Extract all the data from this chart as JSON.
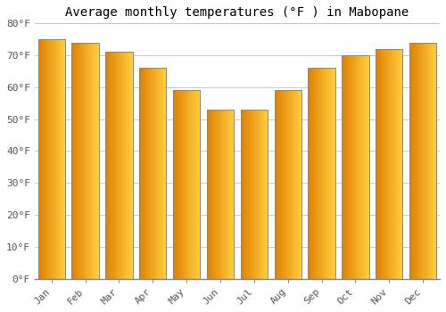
{
  "title": "Average monthly temperatures (°F ) in Mabopane",
  "months": [
    "Jan",
    "Feb",
    "Mar",
    "Apr",
    "May",
    "Jun",
    "Jul",
    "Aug",
    "Sep",
    "Oct",
    "Nov",
    "Dec"
  ],
  "values": [
    75,
    74,
    71,
    66,
    59,
    53,
    53,
    59,
    66,
    70,
    72,
    74
  ],
  "bar_color_left": "#E08000",
  "bar_color_right": "#FFD040",
  "ylim": [
    0,
    80
  ],
  "yticks": [
    0,
    10,
    20,
    30,
    40,
    50,
    60,
    70,
    80
  ],
  "ytick_labels": [
    "0°F",
    "10°F",
    "20°F",
    "30°F",
    "40°F",
    "50°F",
    "60°F",
    "70°F",
    "80°F"
  ],
  "background_color": "#FFFFFF",
  "grid_color": "#CCCCCC",
  "title_fontsize": 10,
  "tick_fontsize": 8,
  "font_family": "monospace",
  "bar_width": 0.8
}
